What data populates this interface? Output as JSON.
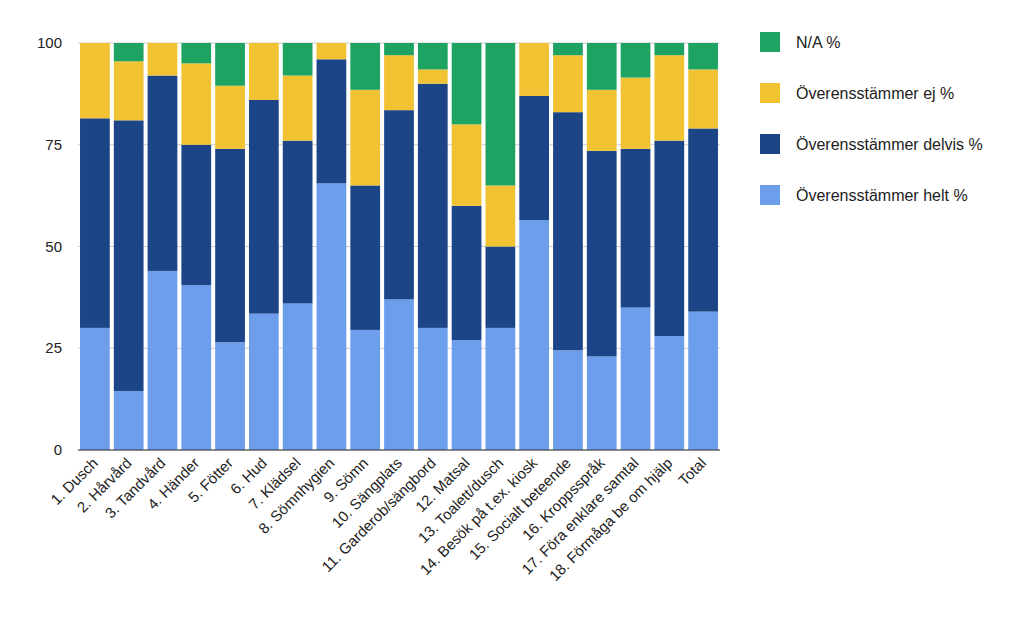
{
  "chart_data": {
    "type": "bar",
    "stacked": true,
    "grid": true,
    "legend": "right",
    "categories": [
      "1. Dusch",
      "2. Hårvård",
      "3. Tandvård",
      "4. Händer",
      "5. Fötter",
      "6. Hud",
      "7. Klädsel",
      "8. Sömnhygien",
      "9. Sömn",
      "10. Sängplats",
      "11. Garderob/sängbord",
      "12. Matsal",
      "13. Toalett/dusch",
      "14. Besök på t.ex. kiosk",
      "15. Socialt beteende",
      "16. Kroppsspråk",
      "17. Föra enklare samtal",
      "18. Förmåga be om hjälp",
      "Total"
    ],
    "series": [
      {
        "name": "Överensstämmer helt %",
        "color": "#6d9eeb",
        "values": [
          30,
          14.5,
          44,
          40.5,
          26.5,
          33.5,
          36,
          65.5,
          29.5,
          37,
          30,
          27,
          30,
          56.5,
          24.5,
          23,
          35,
          28,
          34
        ]
      },
      {
        "name": "Överensstämmer delvis %",
        "color": "#1c4587",
        "values": [
          51.5,
          66.5,
          48,
          34.5,
          47.5,
          52.5,
          40,
          30.5,
          35.5,
          46.5,
          60,
          33,
          20,
          30.5,
          58.5,
          50.5,
          39,
          48,
          45
        ]
      },
      {
        "name": "Överensstämmer ej %",
        "color": "#f1c232",
        "values": [
          18.5,
          14.5,
          8,
          20,
          15.5,
          14,
          16,
          4,
          23.5,
          13.5,
          3.5,
          20,
          15,
          13,
          14,
          15,
          17.5,
          21,
          14.5
        ]
      },
      {
        "name": "N/A %",
        "color": "#1ea362",
        "values": [
          0,
          4.5,
          0,
          5,
          10.5,
          0,
          8,
          0,
          11.5,
          3,
          6.5,
          20,
          35,
          0,
          3,
          11.5,
          8.5,
          3,
          6.5
        ]
      }
    ],
    "ylim": [
      0,
      100
    ],
    "yticks": [
      0,
      25,
      50,
      75,
      100
    ]
  }
}
